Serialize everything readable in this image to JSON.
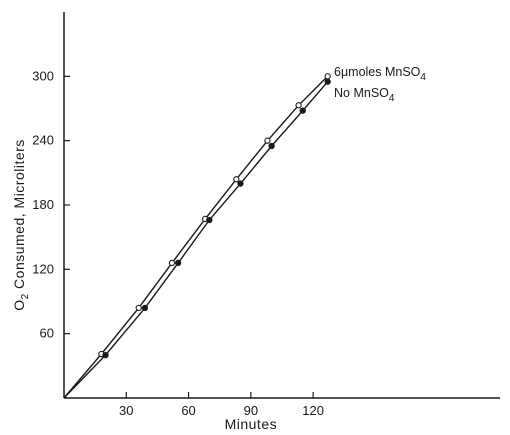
{
  "chart_data": {
    "type": "line",
    "xlabel": "Minutes",
    "ylabel": {
      "main_before": "O",
      "subscript": "2",
      "main_after": " Consumed, Microliters"
    },
    "xlim": [
      0,
      210
    ],
    "ylim": [
      0,
      360
    ],
    "xticks": [
      30,
      60,
      90,
      120
    ],
    "yticks": [
      60,
      120,
      180,
      240,
      300
    ],
    "grid": false,
    "legend_placement": "series labels at right end of lines",
    "series": [
      {
        "name": "6 μmoles MnSO4",
        "label_parts": [
          "6",
          "μ",
          "moles MnSO",
          "4"
        ],
        "marker": "open-circle",
        "x": [
          0,
          18,
          36,
          52,
          68,
          83,
          98,
          113,
          127
        ],
        "y": [
          0,
          41,
          84,
          126,
          167,
          204,
          240,
          273,
          300
        ]
      },
      {
        "name": "No MnSO4",
        "label_parts": [
          "No MnSO",
          "4"
        ],
        "marker": "filled-circle",
        "x": [
          0,
          20,
          39,
          55,
          70,
          85,
          100,
          115,
          127
        ],
        "y": [
          0,
          40,
          84,
          126,
          166,
          200,
          235,
          268,
          295
        ]
      }
    ],
    "colors": {
      "line": "#1a1a1a",
      "background": "#ffffff"
    }
  }
}
